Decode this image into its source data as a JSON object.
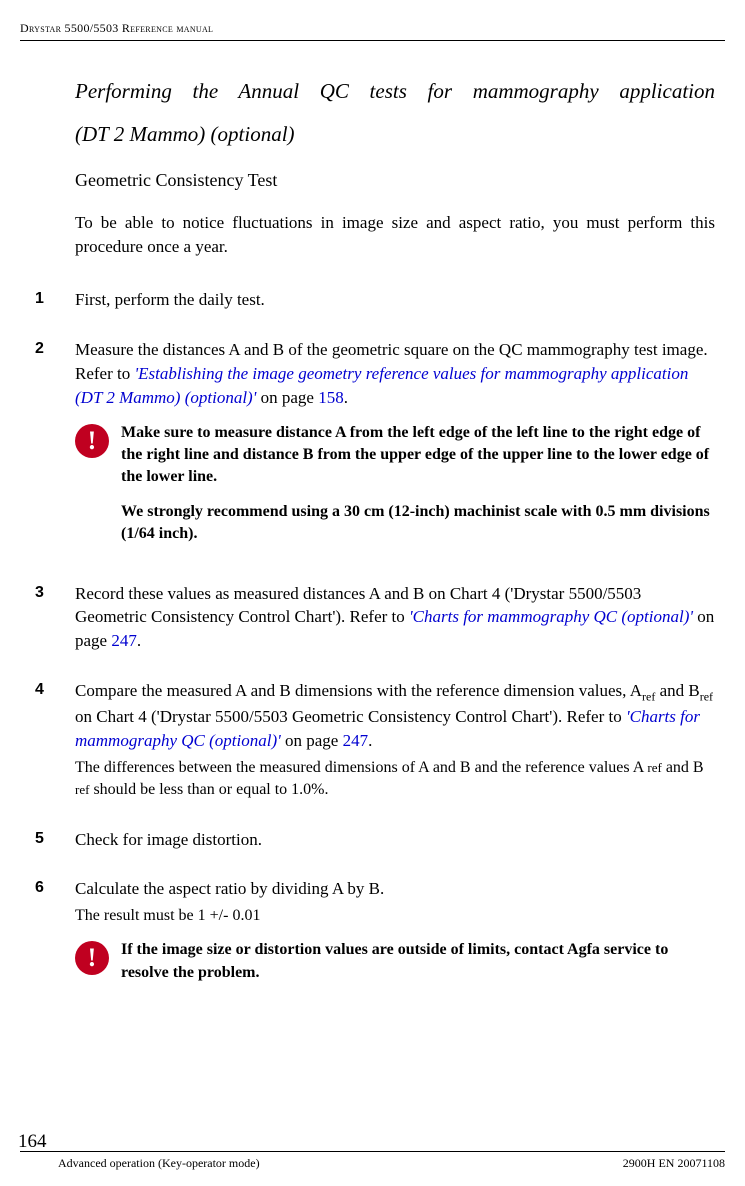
{
  "header": {
    "running_head": "Drystar 5500/5503 Reference manual"
  },
  "title": {
    "line1": "Performing the Annual QC tests for mammography application",
    "line2": "(DT 2 Mammo) (optional)"
  },
  "subtitle": "Geometric Consistency Test",
  "intro": "To be able to notice fluctuations in image size and aspect ratio, you must perform this procedure once a year.",
  "steps": {
    "s1": {
      "num": "1",
      "text": "First, perform the daily test."
    },
    "s2": {
      "num": "2",
      "pre": "Measure the distances A and B of the geometric square on the QC mammography test image. Refer to ",
      "link": "'Establishing the image geometry reference values for mammography application (DT 2 Mammo) (optional)'",
      "mid": " on page ",
      "page": "158",
      "post": ".",
      "callout1_p1": "Make sure to measure distance A from the left edge of the left line to the right edge of the right line and distance B from the upper edge of the upper line to the lower edge of the lower line.",
      "callout1_p2": "We strongly recommend using a 30 cm (12-inch) machinist scale with 0.5 mm divisions (1/64 inch)."
    },
    "s3": {
      "num": "3",
      "pre": "Record these values as measured distances A and B on Chart 4 ('Drystar 5500/5503 Geometric Consistency Control Chart'). Refer to ",
      "link": "'Charts for mammography QC (optional)'",
      "mid": " on page ",
      "page": "247",
      "post": "."
    },
    "s4": {
      "num": "4",
      "pre": "Compare the measured A and B dimensions with the reference dimension values, A",
      "sub1": "ref",
      "mid1": " and B",
      "sub2": "ref",
      "mid2": " on Chart 4 ('Drystar 5500/5503 Geometric Consistency Control Chart'). Refer to ",
      "link": "'Charts for mammography QC (optional)'",
      "mid3": " on page ",
      "page": "247",
      "post": ".",
      "sub_pre": "The differences between the measured dimensions of A and B and the reference values A ",
      "sub_ref1": "ref",
      "sub_mid": " and B ",
      "sub_ref2": "ref",
      "sub_post": " should be less than or equal to 1.0%."
    },
    "s5": {
      "num": "5",
      "text": "Check for image distortion."
    },
    "s6": {
      "num": "6",
      "text": "Calculate the aspect ratio by dividing A by B.",
      "subtext": "The result must be 1 +/- 0.01",
      "callout": "If the image size or distortion values are outside of limits, contact Agfa service to resolve the problem."
    }
  },
  "footer": {
    "page_number": "164",
    "left": "Advanced operation (Key-operator mode)",
    "right": "2900H EN 20071108"
  },
  "icon_glyph": "!"
}
